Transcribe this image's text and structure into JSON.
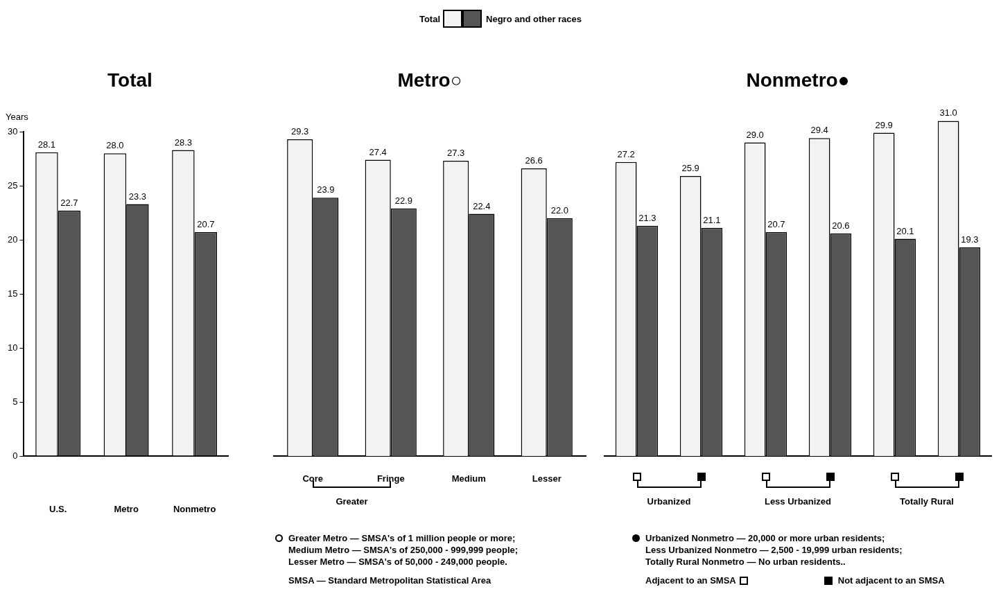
{
  "chart_data": [
    {
      "type": "bar",
      "title": "Total",
      "ylabel": "Years",
      "categories": [
        "U.S.",
        "Metro",
        "Nonmetro"
      ],
      "series": [
        {
          "name": "Total",
          "color": "#f2f2f2",
          "values": [
            28.1,
            28.0,
            28.3
          ],
          "value_labels": [
            "28.1",
            "28.0",
            "28.3"
          ]
        },
        {
          "name": "Negro and other races",
          "color": "#555555",
          "values": [
            22.7,
            23.3,
            20.7
          ],
          "value_labels": [
            "22.7",
            "23.3",
            "20.7"
          ]
        }
      ],
      "ylim": [
        0,
        30
      ],
      "yticks": [
        0,
        5,
        10,
        15,
        20,
        25,
        30
      ],
      "legend": "top"
    },
    {
      "type": "bar",
      "title": "Metro○",
      "categories": [
        "Core",
        "Fringe",
        "Medium",
        "Lesser"
      ],
      "series": [
        {
          "color": "#f2f2f2",
          "values": [
            29.3,
            27.4,
            27.3,
            26.6
          ],
          "value_labels": [
            "29.3",
            "27.4",
            "27.3",
            "26.6"
          ]
        },
        {
          "color": "#555555",
          "values": [
            23.9,
            22.9,
            22.4,
            22.0
          ],
          "value_labels": [
            "23.9",
            "22.9",
            "22.4",
            "22.0"
          ]
        }
      ],
      "ylim": [
        0,
        30
      ],
      "tick_labels": "x",
      "annotations": [
        "Greater",
        "Greater Metro — SMSA's of 1 million people or more;",
        "Medium Metro — SMSA's of 250,000 - 999,999 people;",
        "Lesser Metro — SMSA's of 50,000 - 249,000 people.",
        "SMSA — Standard Metropolitan Statistical Area"
      ]
    },
    {
      "type": "bar",
      "title": "Nonmetro●",
      "categories": [
        null,
        null,
        null,
        null,
        null,
        null
      ],
      "series": [
        {
          "color": "#f2f2f2",
          "values": [
            27.2,
            25.9,
            29.0,
            29.4,
            29.9,
            31.0
          ],
          "value_labels": [
            "27.2",
            "25.9",
            "29.0",
            "29.4",
            "29.9",
            "31.0"
          ]
        },
        {
          "color": "#555555",
          "values": [
            21.3,
            21.1,
            20.7,
            20.6,
            20.1,
            19.3
          ],
          "value_labels": [
            "21.3",
            "21.1",
            "20.7",
            "20.6",
            "20.1",
            "19.3"
          ]
        }
      ],
      "ylim": [
        0,
        31
      ],
      "tick_labels": false,
      "annotations": [
        "Urbanized",
        "Less Urbanized",
        "Totally Rural",
        "Urbanized Nonmetro — 20,000 or more urban residents;",
        "Less Urbanized Nonmetro — 2,500 - 19,999 urban residents;",
        "Totally Rural Nonmetro — No urban residents..",
        "Adjacent to an SMSA",
        "Not adjacent to an SMSA"
      ]
    }
  ]
}
